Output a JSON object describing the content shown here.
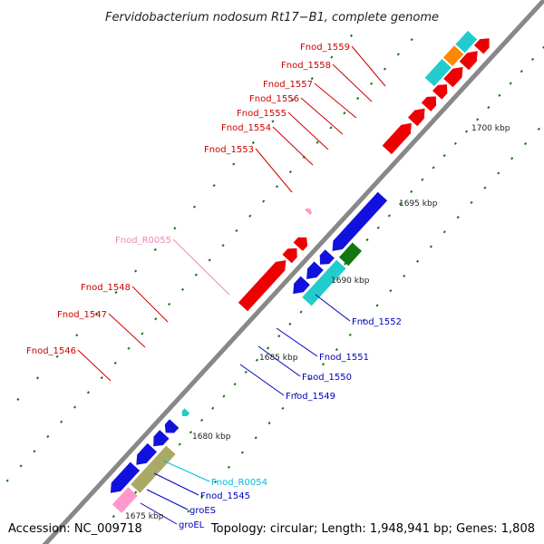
{
  "title": "Fervidobacterium nodosum Rt17−B1, complete genome",
  "footer": {
    "accession": "Accession: NC_009718",
    "summary": "Topology: circular; Length: 1,948,941 bp; Genes: 1,808"
  },
  "scale_labels": [
    "1675 kbp",
    "1680 kbp",
    "1685 kbp",
    "1690 kbp",
    "1695 kbp",
    "1700 kbp"
  ],
  "colors": {
    "backbone": "#888888",
    "red_gene": "#ee0000",
    "blue_gene": "#1111dd",
    "cyan_gene": "#22cccc",
    "orange_gene": "#ff8800",
    "green_gene": "#117711",
    "olive_gene": "#aaaa66",
    "steel_gene": "#4466aa",
    "pink_gene": "#ff99cc",
    "tick": "#117711",
    "red_label": "#cc0000",
    "blue_label": "#0000bb",
    "cyan_label": "#00bbdd",
    "pink_label": "#ee88bb"
  },
  "gene_labels": [
    {
      "text": "Fnod_1559",
      "color": "red"
    },
    {
      "text": "Fnod_1558",
      "color": "red"
    },
    {
      "text": "Fnod_1557",
      "color": "red"
    },
    {
      "text": "Fnod_1556",
      "color": "red"
    },
    {
      "text": "Fnod_1555",
      "color": "red"
    },
    {
      "text": "Fnod_1554",
      "color": "red"
    },
    {
      "text": "Fnod_1553",
      "color": "red"
    },
    {
      "text": "Fnod_R0055",
      "color": "pink"
    },
    {
      "text": "Fnod_1548",
      "color": "red"
    },
    {
      "text": "Fnod_1547",
      "color": "red"
    },
    {
      "text": "Fnod_1546",
      "color": "red"
    },
    {
      "text": "Fnod_1552",
      "color": "blue"
    },
    {
      "text": "Fnod_1551",
      "color": "blue"
    },
    {
      "text": "Fnod_1550",
      "color": "blue"
    },
    {
      "text": "Fnod_1549",
      "color": "blue"
    },
    {
      "text": "Fnod_R0054",
      "color": "cyan"
    },
    {
      "text": "Fnod_1545",
      "color": "blue"
    },
    {
      "text": "groES",
      "color": "blue"
    },
    {
      "text": "groEL",
      "color": "blue"
    }
  ]
}
